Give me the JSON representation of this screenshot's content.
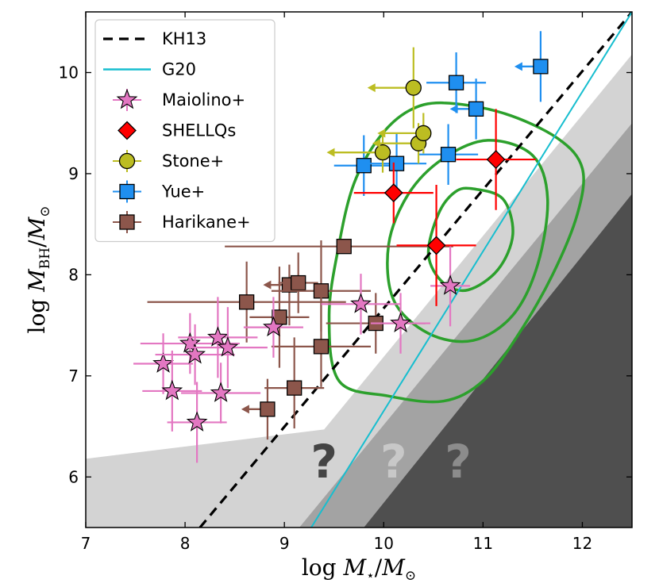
{
  "chart_data": {
    "type": "scatter",
    "xlabel": {
      "prefix": "log ",
      "symbol": "M",
      "sub": "⋆",
      "slash": "/",
      "symbol2": "M",
      "sub2": "⊙"
    },
    "ylabel": {
      "prefix": "log ",
      "symbol": "M",
      "sub": "BH",
      "slash": "/",
      "symbol2": "M",
      "sub2": "⊙"
    },
    "xlim": [
      7,
      12.5
    ],
    "ylim": [
      5.5,
      10.6
    ],
    "xticks": [
      7,
      8,
      9,
      10,
      11,
      12
    ],
    "yticks": [
      6,
      7,
      8,
      9,
      10
    ],
    "question_marks": [
      {
        "text": "?",
        "x": 9.4,
        "y": 6.15,
        "color": "#444444"
      },
      {
        "text": "?",
        "x": 10.1,
        "y": 6.15,
        "color": "#c8c8c8"
      },
      {
        "text": "?",
        "x": 10.75,
        "y": 6.15,
        "color": "#8c8c8c"
      }
    ],
    "exclusion_regions": [
      {
        "name": "light",
        "color": "#d3d3d3",
        "points": [
          [
            7,
            6.18
          ],
          [
            9.4,
            6.47
          ],
          [
            12.5,
            10.18
          ],
          [
            12.5,
            5.5
          ],
          [
            7,
            5.5
          ]
        ]
      },
      {
        "name": "mid",
        "color": "#a3a3a3",
        "points": [
          [
            9.15,
            5.5
          ],
          [
            12.5,
            9.5
          ],
          [
            12.5,
            5.5
          ]
        ]
      },
      {
        "name": "dark",
        "color": "#4f4f4f",
        "points": [
          [
            9.8,
            5.5
          ],
          [
            12.5,
            8.8
          ],
          [
            12.5,
            5.5
          ]
        ]
      }
    ],
    "relations": [
      {
        "name": "KH13",
        "color": "#000000",
        "dash": "12,8",
        "points": [
          [
            8.15,
            5.5
          ],
          [
            12.5,
            10.6
          ]
        ]
      },
      {
        "name": "G20",
        "color": "#17becf",
        "dash": "",
        "points": [
          [
            9.27,
            5.5
          ],
          [
            12.5,
            10.6
          ]
        ]
      }
    ],
    "contours": [
      {
        "level": "outer",
        "color": "#2ca02c",
        "points": [
          [
            10.6,
            9.7
          ],
          [
            11.2,
            9.6
          ],
          [
            11.75,
            9.35
          ],
          [
            12.0,
            9.05
          ],
          [
            11.95,
            8.6
          ],
          [
            11.7,
            8.0
          ],
          [
            11.35,
            7.4
          ],
          [
            11.0,
            6.95
          ],
          [
            10.6,
            6.75
          ],
          [
            10.05,
            6.8
          ],
          [
            9.55,
            6.95
          ],
          [
            9.45,
            7.6
          ],
          [
            9.55,
            8.3
          ],
          [
            9.7,
            8.9
          ],
          [
            9.95,
            9.35
          ],
          [
            10.25,
            9.62
          ]
        ]
      },
      {
        "level": "middle",
        "color": "#2ca02c",
        "points": [
          [
            11.05,
            9.33
          ],
          [
            11.5,
            9.18
          ],
          [
            11.65,
            8.75
          ],
          [
            11.55,
            8.1
          ],
          [
            11.3,
            7.6
          ],
          [
            10.9,
            7.35
          ],
          [
            10.45,
            7.42
          ],
          [
            10.1,
            7.75
          ],
          [
            10.05,
            8.3
          ],
          [
            10.25,
            8.8
          ],
          [
            10.6,
            9.15
          ]
        ]
      },
      {
        "level": "inner",
        "color": "#2ca02c",
        "points": [
          [
            10.9,
            8.85
          ],
          [
            11.2,
            8.75
          ],
          [
            11.3,
            8.4
          ],
          [
            11.15,
            8.05
          ],
          [
            10.85,
            7.85
          ],
          [
            10.6,
            7.92
          ],
          [
            10.45,
            8.2
          ],
          [
            10.55,
            8.6
          ],
          [
            10.72,
            8.82
          ]
        ]
      }
    ],
    "series": [
      {
        "name": "Harikane+",
        "marker": "square",
        "color": "#8c564b",
        "errcolor": "#8c564b",
        "points": [
          {
            "x": 9.6,
            "y": 8.28,
            "xerr": [
              1.2,
              1.1
            ],
            "yerr": [
              0.0,
              0.0
            ]
          },
          {
            "x": 8.62,
            "y": 7.73,
            "xerr": [
              1.0,
              1.0
            ],
            "yerr": [
              0.4,
              0.4
            ]
          },
          {
            "x": 8.95,
            "y": 7.58,
            "xerr": [
              0.3,
              0.3
            ],
            "yerr": [
              0.5,
              0.5
            ]
          },
          {
            "x": 9.05,
            "y": 7.9,
            "xerr": [
              0.2,
              0.0
            ],
            "yerr": [
              0.4,
              0.2
            ],
            "upper_x": true
          },
          {
            "x": 9.14,
            "y": 7.92,
            "xerr": [
              0.2,
              0.2
            ],
            "yerr": [
              0.3,
              0.3
            ]
          },
          {
            "x": 9.37,
            "y": 7.84,
            "xerr": [
              0.5,
              0.5
            ],
            "yerr": [
              0.4,
              0.5
            ]
          },
          {
            "x": 9.37,
            "y": 7.29,
            "xerr": [
              0.5,
              0.5
            ],
            "yerr": [
              0.4,
              0.5
            ]
          },
          {
            "x": 9.1,
            "y": 6.88,
            "xerr": [
              0.3,
              0.3
            ],
            "yerr": [
              0.4,
              0.5
            ]
          },
          {
            "x": 8.83,
            "y": 6.67,
            "xerr": [
              0.2,
              0.0
            ],
            "yerr": [
              0.3,
              0.3
            ],
            "upper_x": true
          },
          {
            "x": 9.92,
            "y": 7.52,
            "xerr": [
              0.5,
              0.5
            ],
            "yerr": [
              0.3,
              0.3
            ]
          }
        ]
      },
      {
        "name": "Maiolino+",
        "marker": "star",
        "color": "#e377c2",
        "errcolor": "#e377c2",
        "points": [
          {
            "x": 7.78,
            "y": 7.12,
            "xerr": [
              0.3,
              0.3
            ],
            "yerr": [
              0.3,
              0.3
            ]
          },
          {
            "x": 7.87,
            "y": 6.85,
            "xerr": [
              0.3,
              0.3
            ],
            "yerr": [
              0.4,
              0.4
            ]
          },
          {
            "x": 8.05,
            "y": 7.32,
            "xerr": [
              0.5,
              0.5
            ],
            "yerr": [
              0.3,
              0.3
            ]
          },
          {
            "x": 8.1,
            "y": 7.21,
            "xerr": [
              0.4,
              0.4
            ],
            "yerr": [
              0.3,
              0.3
            ]
          },
          {
            "x": 8.12,
            "y": 6.54,
            "xerr": [
              0.3,
              0.3
            ],
            "yerr": [
              0.4,
              0.4
            ]
          },
          {
            "x": 8.33,
            "y": 7.38,
            "xerr": [
              0.4,
              0.4
            ],
            "yerr": [
              0.4,
              0.4
            ]
          },
          {
            "x": 8.43,
            "y": 7.28,
            "xerr": [
              0.4,
              0.4
            ],
            "yerr": [
              0.4,
              0.4
            ]
          },
          {
            "x": 8.36,
            "y": 6.83,
            "xerr": [
              0.4,
              0.4
            ],
            "yerr": [
              0.3,
              0.3
            ]
          },
          {
            "x": 8.89,
            "y": 7.48,
            "xerr": [
              0.3,
              0.3
            ],
            "yerr": [
              0.3,
              0.3
            ]
          },
          {
            "x": 9.77,
            "y": 7.71,
            "xerr": [
              0.4,
              0.4
            ],
            "yerr": [
              0.3,
              0.3
            ]
          },
          {
            "x": 10.17,
            "y": 7.52,
            "xerr": [
              0.3,
              0.3
            ],
            "yerr": [
              0.3,
              0.3
            ]
          },
          {
            "x": 10.67,
            "y": 7.89,
            "xerr": [
              0.2,
              0.2
            ],
            "yerr": [
              0.4,
              0.4
            ]
          }
        ]
      },
      {
        "name": "Yue+",
        "marker": "square",
        "color": "#1f8ff0",
        "errcolor": "#1f8ff0",
        "points": [
          {
            "x": 9.8,
            "y": 9.08,
            "xerr": [
              0.3,
              0.3
            ],
            "yerr": [
              0.3,
              0.3
            ]
          },
          {
            "x": 10.13,
            "y": 9.1,
            "xerr": [
              0.3,
              0.3
            ],
            "yerr": [
              0.3,
              0.3
            ]
          },
          {
            "x": 10.65,
            "y": 9.19,
            "xerr": [
              0.3,
              0.3
            ],
            "yerr": [
              0.3,
              0.3
            ]
          },
          {
            "x": 10.73,
            "y": 9.9,
            "xerr": [
              0.3,
              0.3
            ],
            "yerr": [
              0.3,
              0.3
            ]
          },
          {
            "x": 10.93,
            "y": 9.64,
            "xerr": [
              0.2,
              0.0
            ],
            "yerr": [
              0.3,
              0.3
            ],
            "upper_x": true
          },
          {
            "x": 11.58,
            "y": 10.06,
            "xerr": [
              0.2,
              0.0
            ],
            "yerr": [
              0.35,
              0.35
            ],
            "upper_x": true
          }
        ]
      },
      {
        "name": "Stone+",
        "marker": "circle",
        "color": "#bcbd22",
        "errcolor": "#bcbd22",
        "points": [
          {
            "x": 9.99,
            "y": 9.21,
            "xerr": [
              0.5,
              0.0
            ],
            "yerr": [
              0.2,
              0.2
            ],
            "upper_x": true
          },
          {
            "x": 10.3,
            "y": 9.85,
            "xerr": [
              0.4,
              0.0
            ],
            "yerr": [
              0.4,
              0.4
            ],
            "upper_x": true
          },
          {
            "x": 10.35,
            "y": 9.3,
            "xerr": [
              0.4,
              0.0
            ],
            "yerr": [
              0.2,
              0.2
            ],
            "upper_x": true
          },
          {
            "x": 10.4,
            "y": 9.4,
            "xerr": [
              0.4,
              0.0
            ],
            "yerr": [
              0.2,
              0.2
            ],
            "upper_x": true
          }
        ]
      },
      {
        "name": "SHELLQs",
        "marker": "diamond",
        "color": "#ff0000",
        "errcolor": "#ff0000",
        "points": [
          {
            "x": 10.1,
            "y": 8.81,
            "xerr": [
              0.4,
              0.4
            ],
            "yerr": [
              0.3,
              0.3
            ]
          },
          {
            "x": 10.53,
            "y": 8.29,
            "xerr": [
              0.4,
              0.4
            ],
            "yerr": [
              0.6,
              0.6
            ]
          },
          {
            "x": 11.13,
            "y": 9.14,
            "xerr": [
              0.4,
              0.4
            ],
            "yerr": [
              0.5,
              0.5
            ]
          }
        ]
      }
    ],
    "legend": {
      "placement": "top-left",
      "entries": [
        {
          "label": "KH13",
          "kind": "dashed",
          "color": "#000000"
        },
        {
          "label": "G20",
          "kind": "line",
          "color": "#17becf"
        },
        {
          "label": "Maiolino+",
          "kind": "star",
          "color": "#e377c2"
        },
        {
          "label": "SHELLQs",
          "kind": "diamond",
          "color": "#ff0000"
        },
        {
          "label": "Stone+",
          "kind": "circle",
          "color": "#bcbd22"
        },
        {
          "label": "Yue+",
          "kind": "square",
          "color": "#1f8ff0"
        },
        {
          "label": "Harikane+",
          "kind": "square",
          "color": "#8c564b"
        }
      ]
    }
  }
}
